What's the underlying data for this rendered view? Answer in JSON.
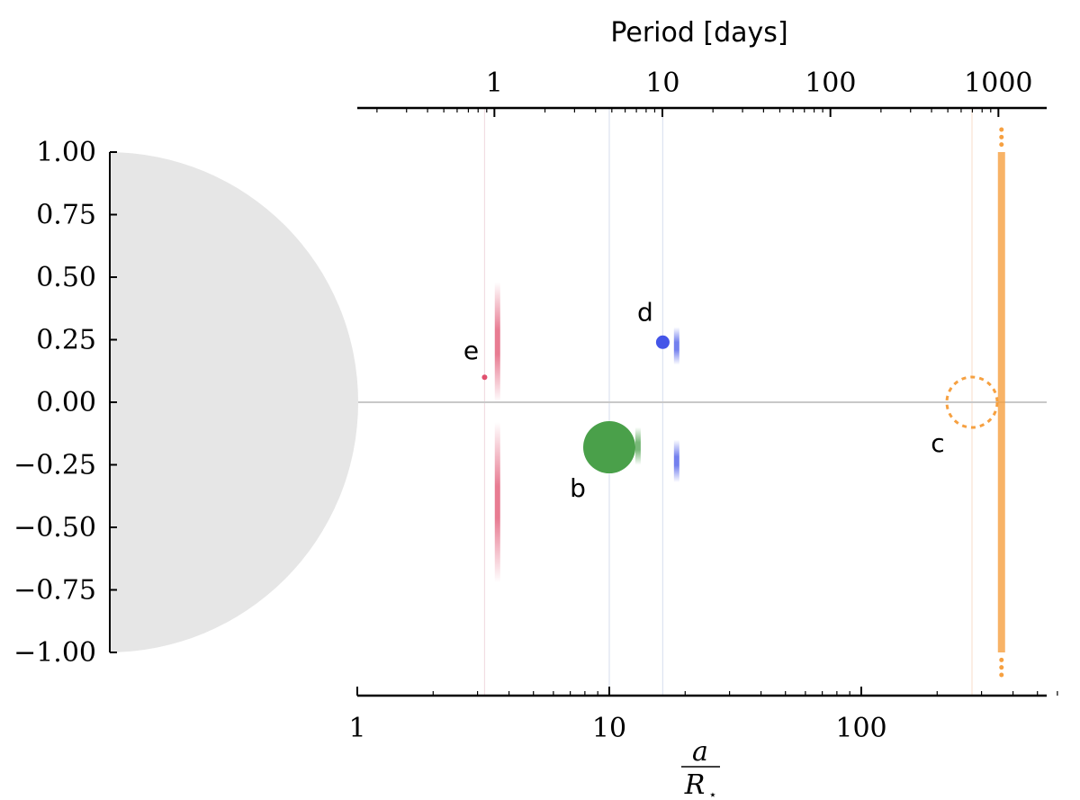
{
  "chart_data": {
    "type": "scatter",
    "x_scale": "log",
    "y_scale": "linear",
    "ylim": [
      -1.0,
      1.0
    ],
    "xlim_a_over_rstar": [
      1,
      600
    ],
    "ylabel": "",
    "xlabel": {
      "numerator": "a",
      "denominator": "R",
      "subscript": "⋆"
    },
    "top_xlabel": "Period [days]",
    "y_ticks": [
      1.0,
      0.75,
      0.5,
      0.25,
      0.0,
      -0.25,
      -0.5,
      -0.75,
      -1.0
    ],
    "y_tick_labels": [
      "1.00",
      "0.75",
      "0.50",
      "0.25",
      "0.00",
      "−0.25",
      "−0.50",
      "−0.75",
      "−1.00"
    ],
    "x_ticks": [
      1,
      10,
      100
    ],
    "x_tick_labels": [
      "1",
      "10",
      "100"
    ],
    "top_ticks_a_over_rstar": [
      3.5,
      16.3,
      75.5,
      350
    ],
    "top_tick_labels": [
      "1",
      "10",
      "100",
      "1000"
    ],
    "star": {
      "radius": 1.0,
      "color": "#e6e6e6"
    },
    "planets": [
      {
        "label": "e",
        "a_over_rstar": 3.2,
        "b": 0.1,
        "size": 6,
        "color": "#e0506e",
        "filled": true,
        "b_distribution": {
          "a_over_rstar": 3.6,
          "upper": [
            0.0,
            0.48
          ],
          "lower": [
            -0.08,
            -0.72
          ]
        }
      },
      {
        "label": "b",
        "a_over_rstar": 10.0,
        "b": -0.18,
        "size": 58,
        "color": "#4aa04a",
        "filled": true,
        "b_distribution": {
          "a_over_rstar": 13.0,
          "upper": [
            -0.1,
            -0.25
          ],
          "lower": null
        }
      },
      {
        "label": "d",
        "a_over_rstar": 16.3,
        "b": 0.24,
        "size": 15,
        "color": "#4455e8",
        "filled": true,
        "b_distribution": {
          "a_over_rstar": 18.5,
          "upper": [
            0.15,
            0.3
          ],
          "lower": [
            -0.15,
            -0.32
          ]
        }
      },
      {
        "label": "c",
        "a_over_rstar": 275,
        "b": 0.0,
        "size": 56,
        "color": "#f6a040",
        "filled": false,
        "b_distribution": {
          "a_over_rstar": 360,
          "upper": [
            -1.0,
            1.0
          ],
          "lower": null
        }
      }
    ],
    "gridlines_a_over_rstar": [
      3.2,
      10.0,
      16.3,
      275
    ],
    "grid_colors": [
      "#f1dde3",
      "#dde3f1",
      "#dde3f1",
      "#f9e3d2"
    ]
  }
}
